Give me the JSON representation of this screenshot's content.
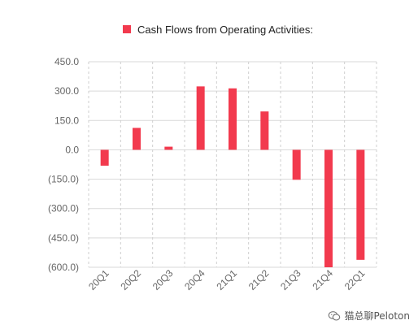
{
  "chart_data": {
    "type": "bar",
    "categories": [
      "20Q1",
      "20Q2",
      "20Q3",
      "20Q4",
      "21Q1",
      "21Q2",
      "21Q3",
      "21Q4",
      "22Q1"
    ],
    "series": [
      {
        "name": "Cash Flows from Operating Activities:",
        "values": [
          -81,
          112,
          16,
          324,
          314,
          196,
          -153,
          -600,
          -562
        ]
      }
    ],
    "ylim": [
      -600,
      450
    ],
    "yticks": [
      450,
      300,
      150,
      0,
      -150,
      -300,
      -450,
      -600
    ],
    "ytick_labels": [
      "450.0",
      "300.0",
      "150.0",
      "0.0",
      "(150.0)",
      "(300.0)",
      "(450.0)",
      "(600.0)"
    ],
    "legend_position": "top-center",
    "grid": "horizontal solid, vertical dashed",
    "bar_color": "#f23a4e"
  },
  "watermark": {
    "text": "猫总聊Peloton",
    "icon": "wechat-icon"
  }
}
